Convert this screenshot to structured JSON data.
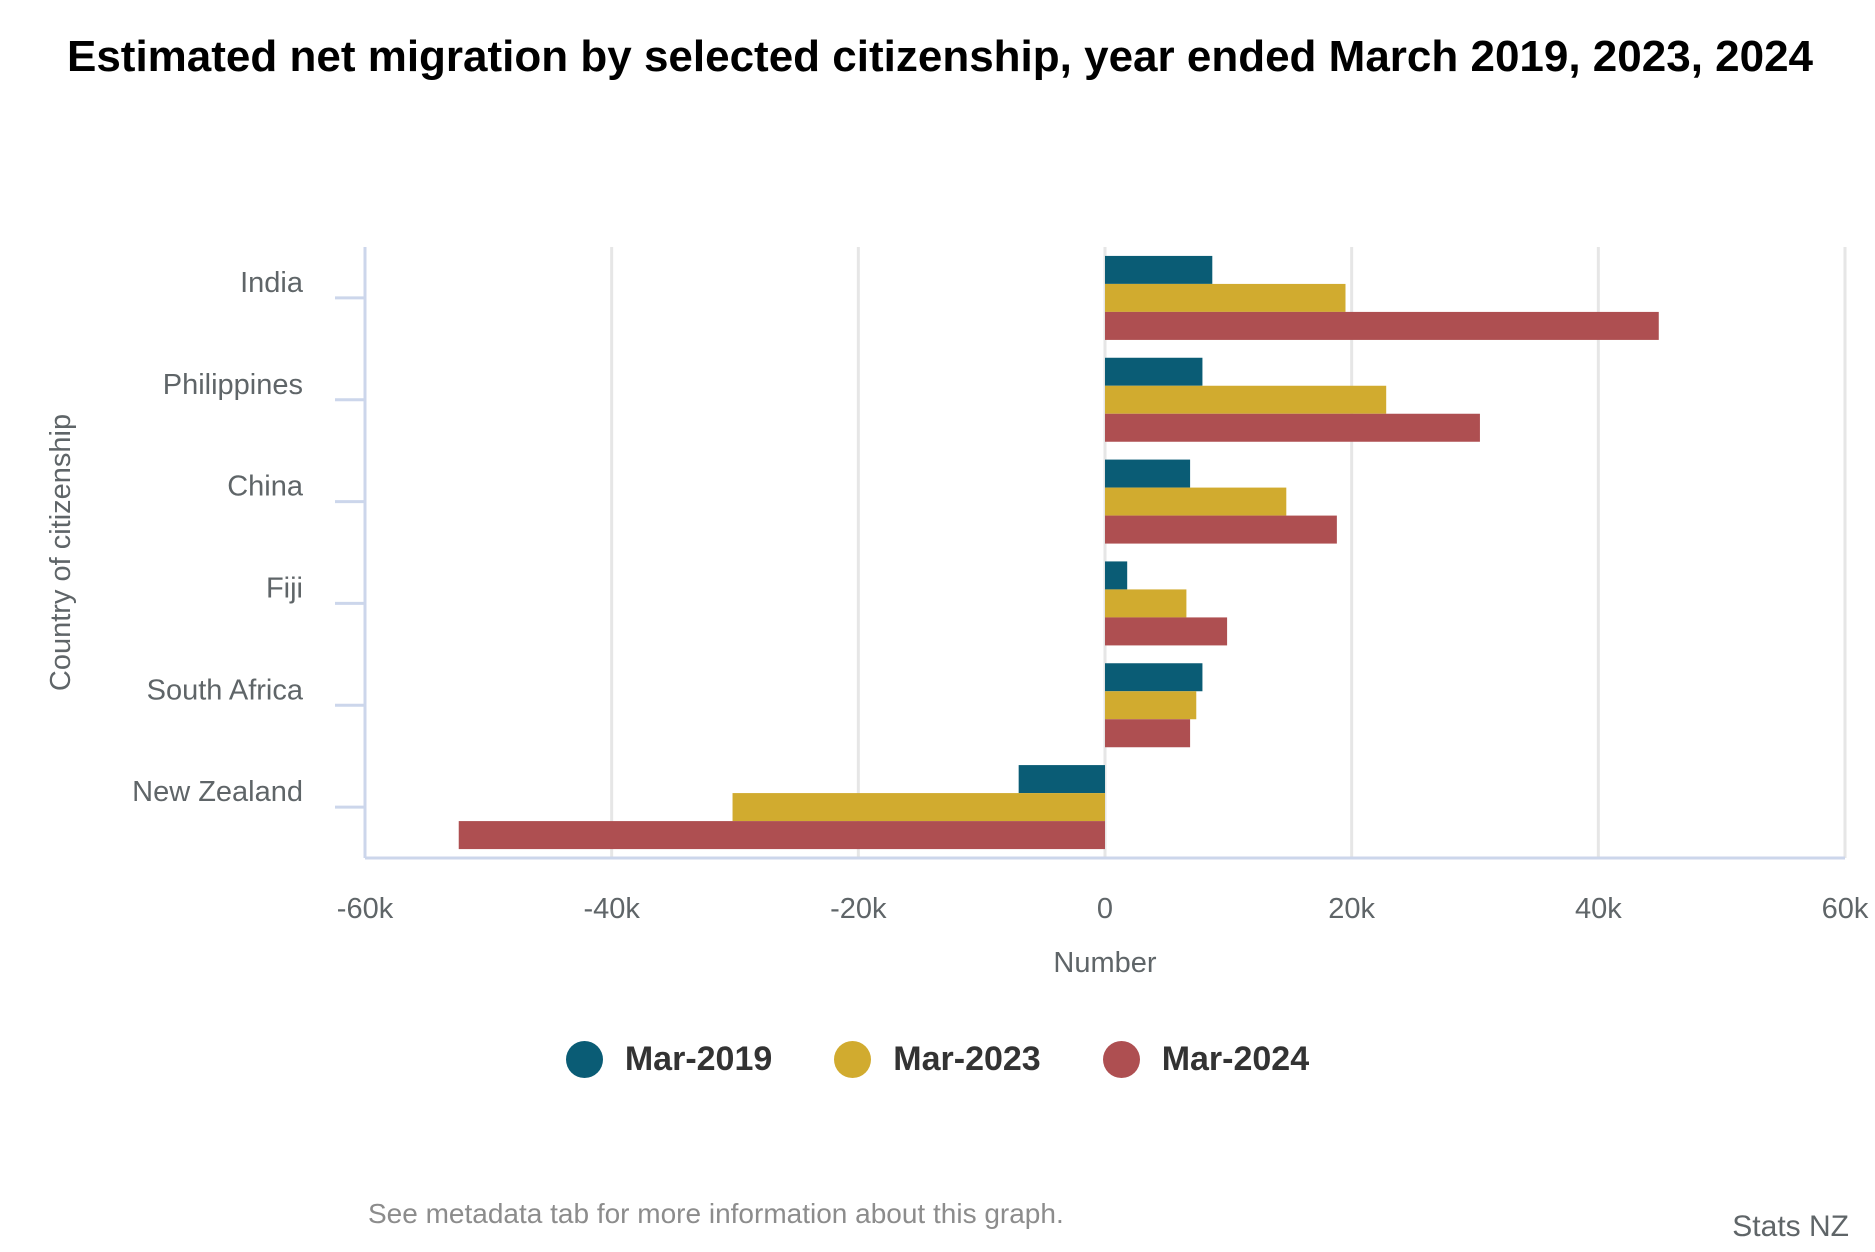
{
  "chart_data": {
    "type": "bar",
    "orientation": "horizontal",
    "title": "Estimated net migration by selected citizenship, year ended March 2019, 2023, 2024",
    "xlabel": "Number",
    "ylabel": "Country of citizenship",
    "xlim": [
      -60000,
      60000
    ],
    "xticks": [
      -60000,
      -40000,
      -20000,
      0,
      20000,
      40000,
      60000
    ],
    "xtick_labels": [
      "-60k",
      "-40k",
      "-20k",
      "0",
      "20k",
      "40k",
      "60k"
    ],
    "grid": true,
    "legend_position": "bottom",
    "categories": [
      "India",
      "Philippines",
      "China",
      "Fiji",
      "South Africa",
      "New Zealand"
    ],
    "series": [
      {
        "name": "Mar-2019",
        "color": "#0a5c75",
        "values": [
          8700,
          7900,
          6900,
          1800,
          7900,
          -7000
        ]
      },
      {
        "name": "Mar-2023",
        "color": "#d1ab2f",
        "values": [
          19500,
          22800,
          14700,
          6600,
          7400,
          -30200
        ]
      },
      {
        "name": "Mar-2024",
        "color": "#ae4f51",
        "values": [
          44900,
          30400,
          18800,
          9900,
          6900,
          -52400
        ]
      }
    ]
  },
  "footnote": "See metadata tab for more information about this graph.",
  "credit": "Stats NZ"
}
